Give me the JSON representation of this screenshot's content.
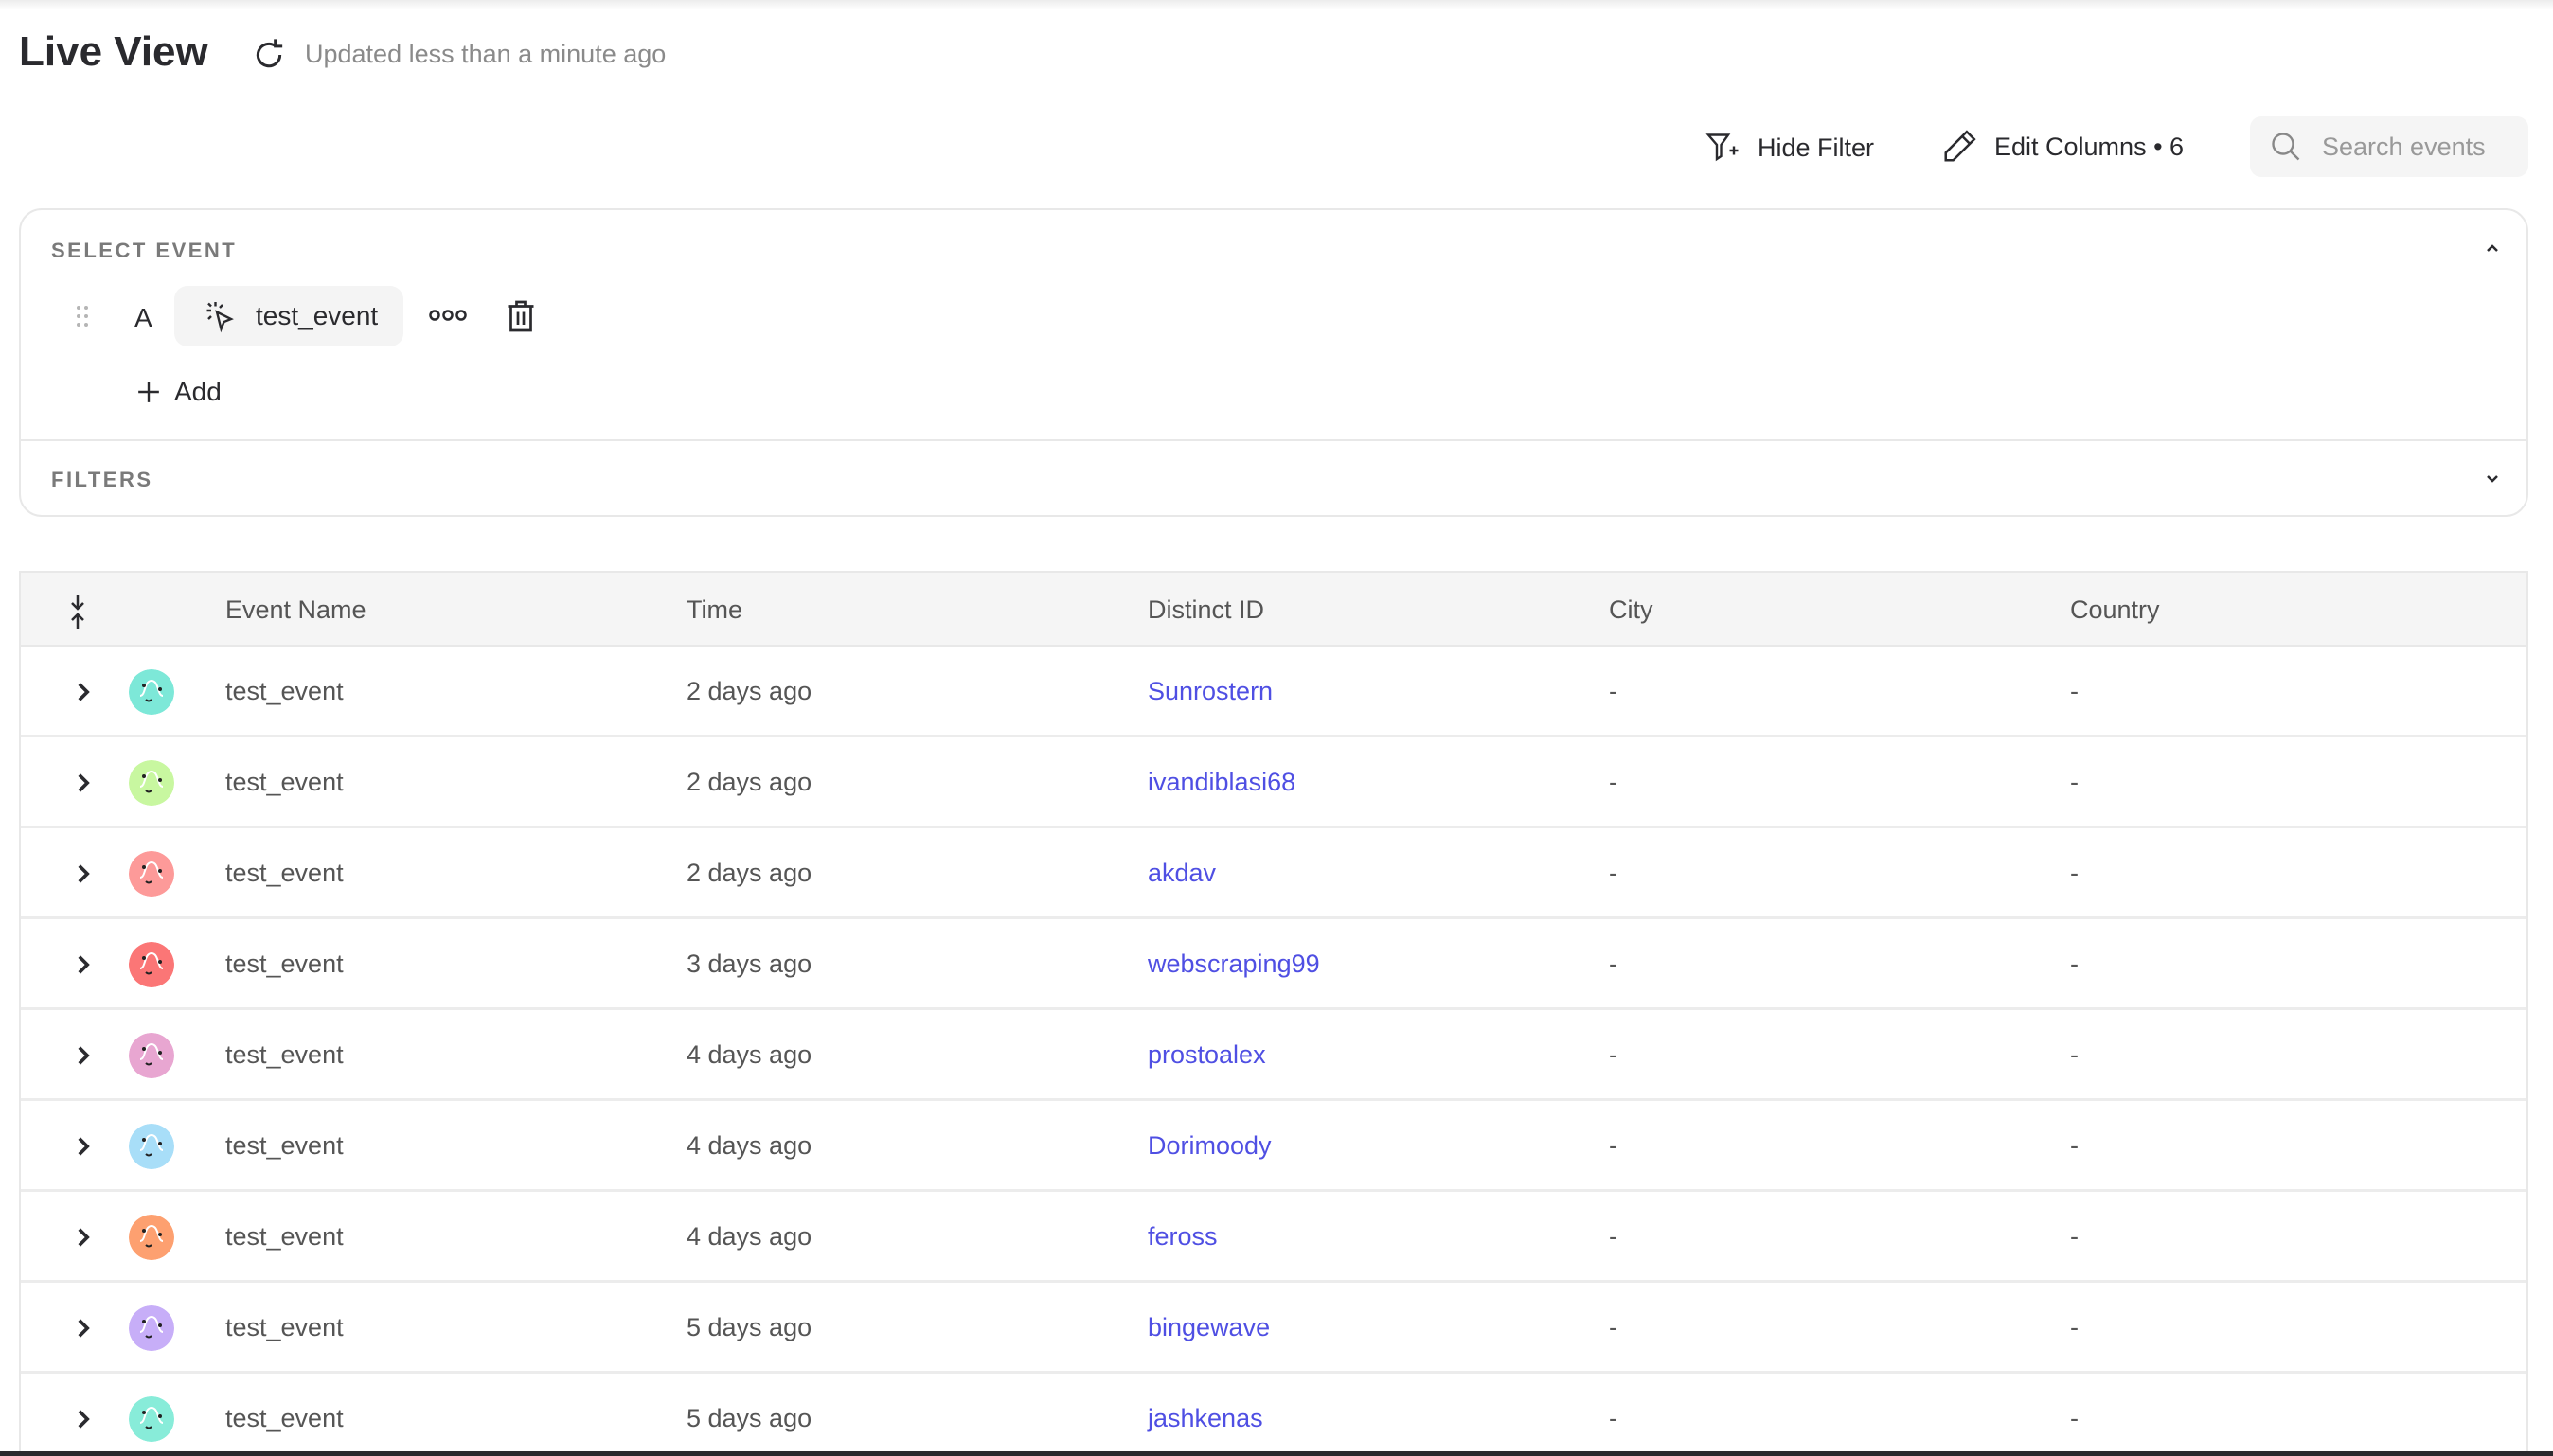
{
  "header": {
    "title": "Live View",
    "updated": "Updated less than a minute ago"
  },
  "toolbar": {
    "hide_filter": "Hide Filter",
    "edit_columns": "Edit Columns • 6",
    "search_placeholder": "Search events"
  },
  "select_event": {
    "label": "SELECT EVENT",
    "letter": "A",
    "event": "test_event",
    "add": "Add"
  },
  "filters": {
    "label": "FILTERS"
  },
  "table": {
    "columns": [
      "Event Name",
      "Time",
      "Distinct ID",
      "City",
      "Country"
    ],
    "rows": [
      {
        "event": "test_event",
        "time": "2 days ago",
        "distinct_id": "Sunrostern",
        "city": "-",
        "country": "-",
        "avatar_color": "#7de8d8"
      },
      {
        "event": "test_event",
        "time": "2 days ago",
        "distinct_id": "ivandiblasi68",
        "city": "-",
        "country": "-",
        "avatar_color": "#c8f7a0"
      },
      {
        "event": "test_event",
        "time": "2 days ago",
        "distinct_id": "akdav",
        "city": "-",
        "country": "-",
        "avatar_color": "#fd9a99"
      },
      {
        "event": "test_event",
        "time": "3 days ago",
        "distinct_id": "webscraping99",
        "city": "-",
        "country": "-",
        "avatar_color": "#fb7676"
      },
      {
        "event": "test_event",
        "time": "4 days ago",
        "distinct_id": "prostoalex",
        "city": "-",
        "country": "-",
        "avatar_color": "#e8a6d1"
      },
      {
        "event": "test_event",
        "time": "4 days ago",
        "distinct_id": "Dorimoody",
        "city": "-",
        "country": "-",
        "avatar_color": "#a8def8"
      },
      {
        "event": "test_event",
        "time": "4 days ago",
        "distinct_id": "feross",
        "city": "-",
        "country": "-",
        "avatar_color": "#fda070"
      },
      {
        "event": "test_event",
        "time": "5 days ago",
        "distinct_id": "bingewave",
        "city": "-",
        "country": "-",
        "avatar_color": "#c7aef8"
      },
      {
        "event": "test_event",
        "time": "5 days ago",
        "distinct_id": "jashkenas",
        "city": "-",
        "country": "-",
        "avatar_color": "#88ecd9"
      }
    ]
  },
  "colors": {
    "link": "#4f4fe3",
    "text": "#2a2a2e",
    "muted": "#8a8a8a",
    "header_bg": "#f5f5f5"
  }
}
